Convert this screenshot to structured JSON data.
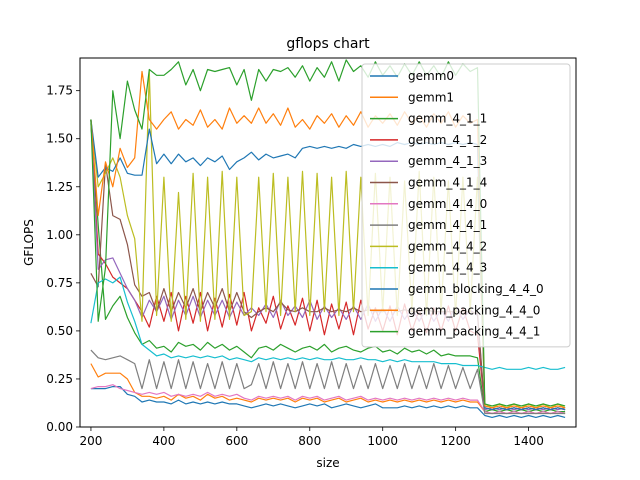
{
  "chart_data": {
    "type": "line",
    "title": "gflops chart",
    "xlabel": "size",
    "ylabel": "GFLOPS",
    "xlim": [
      170,
      1530
    ],
    "ylim": [
      0.0,
      1.92
    ],
    "xticks": [
      200,
      400,
      600,
      800,
      1000,
      1200,
      1400
    ],
    "xtick_labels": [
      "200",
      "400",
      "600",
      "800",
      "1000",
      "1200",
      "1400"
    ],
    "yticks": [
      0.0,
      0.25,
      0.5,
      0.75,
      1.0,
      1.25,
      1.5,
      1.75
    ],
    "ytick_labels": [
      "0.00",
      "0.25",
      "0.50",
      "0.75",
      "1.00",
      "1.25",
      "1.50",
      "1.75"
    ],
    "grid": false,
    "legend_position": "upper-right",
    "x": [
      200,
      220,
      240,
      260,
      280,
      300,
      320,
      340,
      360,
      380,
      400,
      420,
      440,
      460,
      480,
      500,
      520,
      540,
      560,
      580,
      600,
      620,
      640,
      660,
      680,
      700,
      720,
      740,
      760,
      780,
      800,
      820,
      840,
      860,
      880,
      900,
      920,
      940,
      960,
      980,
      1000,
      1020,
      1040,
      1060,
      1080,
      1100,
      1120,
      1140,
      1160,
      1180,
      1200,
      1220,
      1240,
      1260,
      1280,
      1300,
      1320,
      1340,
      1360,
      1380,
      1400,
      1420,
      1440,
      1460,
      1480,
      1500
    ],
    "series": [
      {
        "name": "gemm0",
        "color": "#1f77b4",
        "values": [
          0.2,
          0.2,
          0.2,
          0.21,
          0.21,
          0.17,
          0.16,
          0.13,
          0.14,
          0.13,
          0.13,
          0.12,
          0.14,
          0.12,
          0.13,
          0.12,
          0.13,
          0.12,
          0.13,
          0.12,
          0.12,
          0.11,
          0.1,
          0.11,
          0.12,
          0.11,
          0.12,
          0.11,
          0.1,
          0.11,
          0.12,
          0.11,
          0.12,
          0.1,
          0.11,
          0.12,
          0.11,
          0.1,
          0.11,
          0.12,
          0.1,
          0.1,
          0.1,
          0.11,
          0.1,
          0.11,
          0.1,
          0.11,
          0.1,
          0.11,
          0.1,
          0.11,
          0.1,
          0.1,
          0.06,
          0.05,
          0.06,
          0.05,
          0.06,
          0.05,
          0.06,
          0.05,
          0.06,
          0.05,
          0.06,
          0.05
        ]
      },
      {
        "name": "gemm1",
        "color": "#ff7f0e",
        "values": [
          0.33,
          0.26,
          0.28,
          0.28,
          0.28,
          0.25,
          0.18,
          0.16,
          0.16,
          0.15,
          0.16,
          0.14,
          0.17,
          0.15,
          0.16,
          0.14,
          0.17,
          0.15,
          0.16,
          0.14,
          0.15,
          0.14,
          0.13,
          0.15,
          0.14,
          0.15,
          0.14,
          0.15,
          0.13,
          0.15,
          0.14,
          0.15,
          0.13,
          0.14,
          0.15,
          0.13,
          0.14,
          0.15,
          0.13,
          0.14,
          0.13,
          0.14,
          0.13,
          0.14,
          0.13,
          0.14,
          0.13,
          0.14,
          0.13,
          0.14,
          0.13,
          0.14,
          0.13,
          0.13,
          0.08,
          0.07,
          0.08,
          0.07,
          0.08,
          0.07,
          0.08,
          0.07,
          0.08,
          0.07,
          0.08,
          0.07
        ]
      },
      {
        "name": "gemm_4_1_1",
        "color": "#2ca02c",
        "values": [
          1.58,
          1.05,
          0.56,
          0.63,
          0.68,
          0.57,
          0.49,
          0.43,
          0.45,
          0.41,
          0.42,
          0.39,
          0.44,
          0.42,
          0.43,
          0.4,
          0.44,
          0.41,
          0.43,
          0.4,
          0.42,
          0.39,
          0.36,
          0.41,
          0.42,
          0.4,
          0.43,
          0.41,
          0.39,
          0.41,
          0.42,
          0.4,
          0.43,
          0.39,
          0.41,
          0.42,
          0.4,
          0.39,
          0.41,
          0.42,
          0.39,
          0.4,
          0.38,
          0.41,
          0.39,
          0.4,
          0.38,
          0.4,
          0.37,
          0.38,
          0.37,
          0.37,
          0.37,
          0.36,
          0.08,
          0.09,
          0.08,
          0.09,
          0.08,
          0.09,
          0.08,
          0.09,
          0.08,
          0.09,
          0.08,
          0.08
        ]
      },
      {
        "name": "gemm_4_1_2",
        "color": "#d62728",
        "values": [
          1.6,
          0.9,
          0.85,
          0.78,
          0.75,
          0.72,
          0.66,
          0.6,
          0.52,
          0.68,
          0.55,
          0.7,
          0.5,
          0.68,
          0.54,
          0.7,
          0.5,
          0.67,
          0.52,
          0.69,
          0.53,
          0.7,
          0.5,
          0.62,
          0.54,
          0.68,
          0.51,
          0.63,
          0.53,
          0.67,
          0.5,
          0.66,
          0.48,
          0.64,
          0.51,
          0.65,
          0.48,
          0.66,
          0.51,
          0.62,
          0.5,
          0.63,
          0.48,
          0.64,
          0.5,
          0.61,
          0.49,
          0.62,
          0.5,
          0.63,
          0.5,
          0.62,
          0.5,
          0.48,
          0.1,
          0.09,
          0.1,
          0.09,
          0.1,
          0.09,
          0.1,
          0.09,
          0.1,
          0.09,
          0.1,
          0.09
        ]
      },
      {
        "name": "gemm_4_1_3",
        "color": "#9467bd",
        "values": [
          1.6,
          0.82,
          0.87,
          0.88,
          0.8,
          0.72,
          0.66,
          0.57,
          0.66,
          0.6,
          0.68,
          0.56,
          0.66,
          0.58,
          0.68,
          0.57,
          0.66,
          0.58,
          0.66,
          0.57,
          0.65,
          0.58,
          0.62,
          0.58,
          0.64,
          0.57,
          0.66,
          0.58,
          0.63,
          0.57,
          0.66,
          0.56,
          0.63,
          0.57,
          0.62,
          0.56,
          0.63,
          0.56,
          0.64,
          0.55,
          0.62,
          0.55,
          0.63,
          0.56,
          0.62,
          0.55,
          0.62,
          0.55,
          0.61,
          0.55,
          0.63,
          0.56,
          0.61,
          0.58,
          0.09,
          0.1,
          0.09,
          0.1,
          0.09,
          0.1,
          0.09,
          0.1,
          0.09,
          0.1,
          0.09,
          0.1
        ]
      },
      {
        "name": "gemm_4_1_4",
        "color": "#8c564b",
        "values": [
          0.8,
          0.73,
          1.37,
          1.1,
          1.08,
          0.95,
          0.74,
          0.68,
          0.7,
          0.6,
          0.72,
          0.6,
          0.7,
          0.62,
          0.72,
          0.6,
          0.7,
          0.62,
          0.72,
          0.6,
          0.7,
          0.6,
          0.57,
          0.6,
          0.62,
          0.6,
          0.65,
          0.61,
          0.6,
          0.62,
          0.6,
          0.6,
          0.62,
          0.6,
          0.61,
          0.6,
          0.62,
          0.6,
          0.61,
          0.6,
          0.6,
          0.61,
          0.6,
          0.61,
          0.6,
          0.6,
          0.61,
          0.6,
          0.6,
          0.6,
          0.6,
          0.6,
          0.6,
          0.59,
          0.1,
          0.09,
          0.1,
          0.09,
          0.1,
          0.09,
          0.1,
          0.09,
          0.1,
          0.09,
          0.1,
          0.09
        ]
      },
      {
        "name": "gemm_4_4_0",
        "color": "#e377c2",
        "values": [
          0.2,
          0.21,
          0.21,
          0.22,
          0.2,
          0.19,
          0.18,
          0.17,
          0.18,
          0.17,
          0.18,
          0.16,
          0.17,
          0.16,
          0.17,
          0.16,
          0.18,
          0.16,
          0.17,
          0.16,
          0.17,
          0.15,
          0.14,
          0.16,
          0.15,
          0.16,
          0.15,
          0.16,
          0.14,
          0.16,
          0.15,
          0.16,
          0.14,
          0.15,
          0.16,
          0.14,
          0.15,
          0.16,
          0.14,
          0.15,
          0.14,
          0.15,
          0.14,
          0.15,
          0.14,
          0.15,
          0.14,
          0.15,
          0.14,
          0.15,
          0.14,
          0.15,
          0.14,
          0.14,
          0.08,
          0.07,
          0.08,
          0.07,
          0.08,
          0.07,
          0.08,
          0.07,
          0.08,
          0.07,
          0.08,
          0.07
        ]
      },
      {
        "name": "gemm_4_4_1",
        "color": "#7f7f7f",
        "values": [
          0.4,
          0.36,
          0.35,
          0.36,
          0.37,
          0.35,
          0.33,
          0.2,
          0.35,
          0.2,
          0.34,
          0.2,
          0.35,
          0.2,
          0.34,
          0.2,
          0.33,
          0.2,
          0.34,
          0.2,
          0.33,
          0.2,
          0.22,
          0.33,
          0.2,
          0.34,
          0.2,
          0.33,
          0.2,
          0.34,
          0.2,
          0.33,
          0.2,
          0.34,
          0.2,
          0.33,
          0.2,
          0.32,
          0.2,
          0.33,
          0.2,
          0.32,
          0.2,
          0.33,
          0.2,
          0.32,
          0.2,
          0.33,
          0.2,
          0.32,
          0.2,
          0.31,
          0.2,
          0.3,
          0.07,
          0.07,
          0.07,
          0.07,
          0.07,
          0.07,
          0.07,
          0.07,
          0.07,
          0.07,
          0.07,
          0.07
        ]
      },
      {
        "name": "gemm_4_4_2",
        "color": "#bcbd22",
        "values": [
          1.6,
          1.25,
          1.32,
          1.4,
          1.3,
          1.1,
          0.98,
          0.55,
          1.85,
          0.58,
          1.3,
          0.55,
          1.22,
          0.56,
          1.32,
          0.55,
          1.3,
          0.56,
          1.33,
          0.56,
          1.3,
          0.58,
          0.6,
          1.3,
          0.6,
          1.32,
          0.58,
          1.3,
          0.6,
          1.33,
          0.58,
          1.32,
          0.6,
          1.3,
          0.58,
          1.33,
          0.6,
          1.3,
          0.58,
          1.32,
          0.6,
          1.3,
          0.58,
          1.28,
          0.6,
          1.33,
          0.58,
          1.3,
          0.6,
          1.28,
          0.58,
          1.3,
          0.6,
          1.3,
          0.12,
          0.1,
          0.12,
          0.1,
          0.12,
          0.1,
          0.12,
          0.1,
          0.12,
          0.1,
          0.12,
          0.1
        ]
      },
      {
        "name": "gemm_4_4_3",
        "color": "#17becf",
        "values": [
          0.54,
          0.75,
          0.77,
          0.75,
          0.78,
          0.65,
          0.55,
          0.43,
          0.4,
          0.37,
          0.38,
          0.36,
          0.37,
          0.36,
          0.37,
          0.36,
          0.37,
          0.36,
          0.37,
          0.35,
          0.36,
          0.35,
          0.34,
          0.36,
          0.35,
          0.36,
          0.35,
          0.36,
          0.35,
          0.36,
          0.35,
          0.36,
          0.35,
          0.35,
          0.36,
          0.35,
          0.35,
          0.36,
          0.35,
          0.35,
          0.34,
          0.35,
          0.34,
          0.35,
          0.34,
          0.34,
          0.34,
          0.34,
          0.33,
          0.33,
          0.33,
          0.32,
          0.32,
          0.32,
          0.31,
          0.3,
          0.31,
          0.3,
          0.3,
          0.3,
          0.31,
          0.3,
          0.31,
          0.3,
          0.3,
          0.31
        ]
      },
      {
        "name": "gemm_blocking_4_4_0",
        "color": "#1f77b4",
        "values": [
          1.6,
          1.3,
          1.35,
          1.33,
          1.4,
          1.32,
          1.31,
          1.31,
          1.55,
          1.37,
          1.42,
          1.37,
          1.42,
          1.38,
          1.4,
          1.36,
          1.4,
          1.38,
          1.41,
          1.34,
          1.38,
          1.4,
          1.43,
          1.39,
          1.42,
          1.4,
          1.41,
          1.42,
          1.4,
          1.45,
          1.46,
          1.45,
          1.46,
          1.45,
          1.46,
          1.45,
          1.47,
          1.46,
          1.47,
          1.46,
          1.47,
          1.46,
          1.48,
          1.47,
          1.48,
          1.47,
          1.48,
          1.47,
          1.48,
          1.47,
          1.48,
          1.47,
          1.48,
          1.47,
          0.1,
          0.09,
          0.1,
          0.09,
          0.1,
          0.09,
          0.1,
          0.09,
          0.1,
          0.09,
          0.1,
          0.09
        ]
      },
      {
        "name": "gemm_packing_4_4_0",
        "color": "#ff7f0e",
        "values": [
          1.6,
          1.1,
          1.38,
          1.25,
          1.45,
          1.35,
          1.4,
          1.85,
          1.6,
          1.55,
          1.6,
          1.64,
          1.55,
          1.6,
          1.57,
          1.65,
          1.56,
          1.6,
          1.55,
          1.66,
          1.58,
          1.62,
          1.58,
          1.66,
          1.58,
          1.63,
          1.57,
          1.66,
          1.56,
          1.6,
          1.55,
          1.62,
          1.58,
          1.63,
          1.56,
          1.62,
          1.57,
          1.64,
          1.56,
          1.62,
          1.58,
          1.63,
          1.57,
          1.64,
          1.58,
          1.62,
          1.56,
          1.63,
          1.58,
          1.64,
          1.56,
          1.62,
          1.58,
          1.6,
          0.11,
          0.1,
          0.11,
          0.1,
          0.11,
          0.1,
          0.11,
          0.1,
          0.11,
          0.1,
          0.11,
          0.1
        ]
      },
      {
        "name": "gemm_packing_4_4_1",
        "color": "#2ca02c",
        "values": [
          1.6,
          0.55,
          0.83,
          1.75,
          1.5,
          1.8,
          1.65,
          1.55,
          1.86,
          1.83,
          1.83,
          1.86,
          1.9,
          1.78,
          1.86,
          1.75,
          1.86,
          1.85,
          1.86,
          1.87,
          1.78,
          1.86,
          1.7,
          1.86,
          1.8,
          1.86,
          1.85,
          1.87,
          1.82,
          1.88,
          1.8,
          1.87,
          1.82,
          1.9,
          1.8,
          1.91,
          1.85,
          1.88,
          1.82,
          1.9,
          1.83,
          1.88,
          1.82,
          1.89,
          1.83,
          1.9,
          1.83,
          1.88,
          1.82,
          1.9,
          1.83,
          1.89,
          1.85,
          1.87,
          0.12,
          0.11,
          0.12,
          0.11,
          0.12,
          0.11,
          0.12,
          0.11,
          0.12,
          0.11,
          0.12,
          0.11
        ]
      }
    ]
  }
}
